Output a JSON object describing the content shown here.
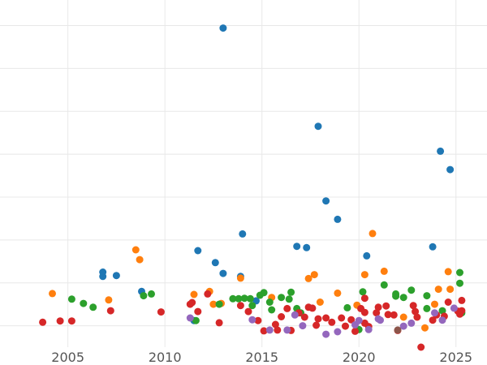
{
  "chart_data": {
    "type": "scatter",
    "title": "",
    "xlabel": "",
    "ylabel": "",
    "x_ticks": [
      "2005",
      "2010",
      "2015",
      "2020",
      "2025"
    ],
    "x_tick_values": [
      2005,
      2010,
      2015,
      2020,
      2025
    ],
    "y_ticks_count": 8,
    "xlim": [
      2001.5,
      2026.6
    ],
    "ylim": [
      0.0,
      8.0
    ],
    "y_gridlines": [
      0.5,
      1.5,
      2.5,
      3.5,
      4.5,
      5.5,
      6.5,
      7.5
    ],
    "grid": true,
    "legend": "none",
    "colors": {
      "blue": "#1f77b4",
      "orange": "#ff7f0e",
      "green": "#2ca02c",
      "red": "#d62728",
      "purple": "#9467bd",
      "brown": "#8c564b"
    },
    "series": [
      {
        "color": "#1f77b4",
        "points": [
          [
            2006.8,
            1.75
          ],
          [
            2006.8,
            1.65
          ],
          [
            2007.5,
            1.67
          ],
          [
            2008.8,
            1.3
          ],
          [
            2011.5,
            0.62
          ],
          [
            2011.7,
            2.25
          ],
          [
            2012.6,
            1.97
          ],
          [
            2013.0,
            7.44
          ],
          [
            2013.0,
            1.72
          ],
          [
            2013.9,
            1.65
          ],
          [
            2014.0,
            2.64
          ],
          [
            2014.7,
            1.08
          ],
          [
            2016.8,
            2.35
          ],
          [
            2017.3,
            2.32
          ],
          [
            2017.9,
            5.15
          ],
          [
            2018.3,
            3.41
          ],
          [
            2018.9,
            2.98
          ],
          [
            2020.4,
            2.13
          ],
          [
            2023.8,
            2.34
          ],
          [
            2024.2,
            4.57
          ],
          [
            2024.7,
            4.14
          ]
        ]
      },
      {
        "color": "#ff7f0e",
        "points": [
          [
            2004.2,
            1.25
          ],
          [
            2007.1,
            1.1
          ],
          [
            2008.5,
            2.27
          ],
          [
            2008.7,
            2.04
          ],
          [
            2011.5,
            1.23
          ],
          [
            2012.3,
            1.3
          ],
          [
            2012.5,
            1.0
          ],
          [
            2012.9,
            1.02
          ],
          [
            2013.9,
            1.61
          ],
          [
            2015.5,
            1.16
          ],
          [
            2017.4,
            1.6
          ],
          [
            2017.7,
            1.69
          ],
          [
            2018.0,
            1.05
          ],
          [
            2018.9,
            1.26
          ],
          [
            2019.9,
            0.98
          ],
          [
            2020.3,
            1.69
          ],
          [
            2020.7,
            2.65
          ],
          [
            2021.3,
            1.77
          ],
          [
            2023.4,
            0.45
          ],
          [
            2023.9,
            1.0
          ],
          [
            2024.1,
            1.35
          ],
          [
            2024.6,
            1.76
          ],
          [
            2024.7,
            1.35
          ],
          [
            2022.3,
            0.7
          ]
        ]
      },
      {
        "color": "#2ca02c",
        "points": [
          [
            2005.2,
            1.12
          ],
          [
            2005.8,
            1.02
          ],
          [
            2006.3,
            0.93
          ],
          [
            2008.9,
            1.2
          ],
          [
            2009.3,
            1.24
          ],
          [
            2011.6,
            0.62
          ],
          [
            2012.8,
            1.0
          ],
          [
            2013.5,
            1.13
          ],
          [
            2013.8,
            1.13
          ],
          [
            2014.1,
            1.14
          ],
          [
            2014.4,
            1.13
          ],
          [
            2014.5,
            0.97
          ],
          [
            2014.9,
            1.21
          ],
          [
            2015.1,
            1.27
          ],
          [
            2015.4,
            1.05
          ],
          [
            2015.5,
            0.87
          ],
          [
            2016.0,
            1.16
          ],
          [
            2016.5,
            1.28
          ],
          [
            2016.4,
            1.12
          ],
          [
            2016.8,
            0.9
          ],
          [
            2017.0,
            0.8
          ],
          [
            2019.4,
            0.92
          ],
          [
            2020.0,
            0.41
          ],
          [
            2020.2,
            1.29
          ],
          [
            2021.3,
            1.45
          ],
          [
            2021.9,
            1.19
          ],
          [
            2022.3,
            1.16
          ],
          [
            2022.7,
            1.33
          ],
          [
            2023.5,
            1.2
          ],
          [
            2023.5,
            0.9
          ],
          [
            2024.3,
            0.85
          ],
          [
            2025.2,
            1.74
          ],
          [
            2025.2,
            1.49
          ],
          [
            2025.3,
            0.8
          ],
          [
            2021.9,
            1.24
          ]
        ]
      },
      {
        "color": "#d62728",
        "points": [
          [
            2003.7,
            0.58
          ],
          [
            2004.6,
            0.61
          ],
          [
            2005.2,
            0.61
          ],
          [
            2007.2,
            0.85
          ],
          [
            2009.8,
            0.82
          ],
          [
            2011.3,
            1.0
          ],
          [
            2011.4,
            1.04
          ],
          [
            2011.7,
            0.83
          ],
          [
            2012.2,
            1.24
          ],
          [
            2012.8,
            0.57
          ],
          [
            2013.9,
            0.97
          ],
          [
            2014.3,
            0.83
          ],
          [
            2014.8,
            0.62
          ],
          [
            2015.1,
            0.38
          ],
          [
            2015.7,
            0.53
          ],
          [
            2015.8,
            0.4
          ],
          [
            2016.0,
            0.71
          ],
          [
            2016.3,
            0.9
          ],
          [
            2016.5,
            0.39
          ],
          [
            2016.9,
            0.8
          ],
          [
            2017.2,
            0.7
          ],
          [
            2017.4,
            0.93
          ],
          [
            2017.6,
            0.91
          ],
          [
            2017.8,
            0.51
          ],
          [
            2017.9,
            0.66
          ],
          [
            2018.3,
            0.68
          ],
          [
            2018.6,
            0.58
          ],
          [
            2019.1,
            0.68
          ],
          [
            2019.3,
            0.49
          ],
          [
            2019.6,
            0.64
          ],
          [
            2019.8,
            0.37
          ],
          [
            2020.1,
            0.9
          ],
          [
            2020.3,
            0.81
          ],
          [
            2020.3,
            0.56
          ],
          [
            2020.5,
            0.48
          ],
          [
            2020.3,
            1.14
          ],
          [
            2021.0,
            0.93
          ],
          [
            2021.4,
            0.96
          ],
          [
            2021.5,
            0.76
          ],
          [
            2021.8,
            0.75
          ],
          [
            2022.8,
            0.97
          ],
          [
            2022.9,
            0.83
          ],
          [
            2023.0,
            0.7
          ],
          [
            2023.2,
            0.0
          ],
          [
            2023.8,
            0.63
          ],
          [
            2024.0,
            0.75
          ],
          [
            2024.4,
            0.72
          ],
          [
            2024.6,
            1.05
          ],
          [
            2025.1,
            0.84
          ],
          [
            2025.2,
            0.77
          ],
          [
            2025.3,
            1.09
          ],
          [
            2025.3,
            0.85
          ],
          [
            2022.0,
            0.39
          ],
          [
            2020.9,
            0.8
          ]
        ]
      },
      {
        "color": "#9467bd",
        "points": [
          [
            2011.3,
            0.68
          ],
          [
            2014.5,
            0.64
          ],
          [
            2015.4,
            0.4
          ],
          [
            2016.3,
            0.4
          ],
          [
            2016.7,
            0.75
          ],
          [
            2017.1,
            0.5
          ],
          [
            2018.3,
            0.3
          ],
          [
            2018.9,
            0.36
          ],
          [
            2019.8,
            0.52
          ],
          [
            2020.0,
            0.62
          ],
          [
            2020.5,
            0.41
          ],
          [
            2021.1,
            0.63
          ],
          [
            2022.3,
            0.49
          ],
          [
            2022.7,
            0.56
          ],
          [
            2023.9,
            0.8
          ],
          [
            2024.3,
            0.63
          ],
          [
            2024.9,
            0.91
          ],
          [
            2021.0,
            0.66
          ]
        ]
      },
      {
        "color": "#8c564b",
        "points": [
          [
            2022.0,
            0.4
          ]
        ]
      }
    ]
  }
}
